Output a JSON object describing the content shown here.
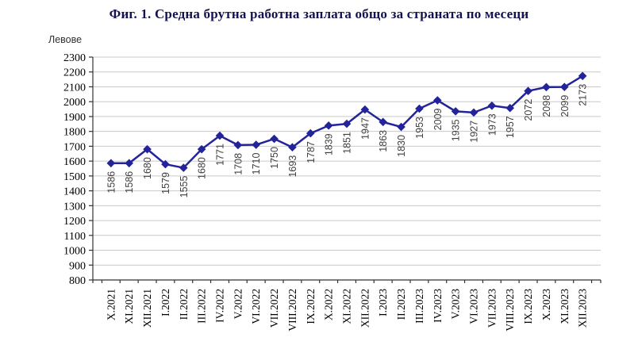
{
  "chart_data": {
    "type": "line",
    "title": "Фиг. 1. Средна брутна работна заплата общо за страната по месеци",
    "xlabel": "",
    "ylabel": "Левове",
    "categories": [
      "X.2021",
      "XI.2021",
      "XII.2021",
      "I.2022",
      "II.2022",
      "III.2022",
      "IV.2022",
      "V.2022",
      "VI.2022",
      "VII.2022",
      "VIII.2022",
      "IX.2022",
      "X.2022",
      "XI.2022",
      "XII.2022",
      "I.2023",
      "II.2023",
      "III.2023",
      "IV.2023",
      "V.2023",
      "VI.2023",
      "VII.2023",
      "VIII.2023",
      "IX.2023",
      "X.2023",
      "XI.2023",
      "XII.2023"
    ],
    "values": [
      1586,
      1586,
      1680,
      1579,
      1555,
      1680,
      1771,
      1708,
      1710,
      1750,
      1693,
      1787,
      1839,
      1851,
      1947,
      1863,
      1830,
      1953,
      2009,
      1935,
      1927,
      1973,
      1957,
      2072,
      2098,
      2099,
      2173
    ],
    "ylim": [
      800,
      2300
    ],
    "ytick_step": 100,
    "grid": true,
    "legend": "none",
    "marker": "diamond",
    "data_labels": true,
    "colors": {
      "series": "#23239B",
      "gridline": "#c9c9c9",
      "axis": "#333333",
      "tick_label": "#000000",
      "data_label": "#404040",
      "title": "#13134e"
    }
  }
}
